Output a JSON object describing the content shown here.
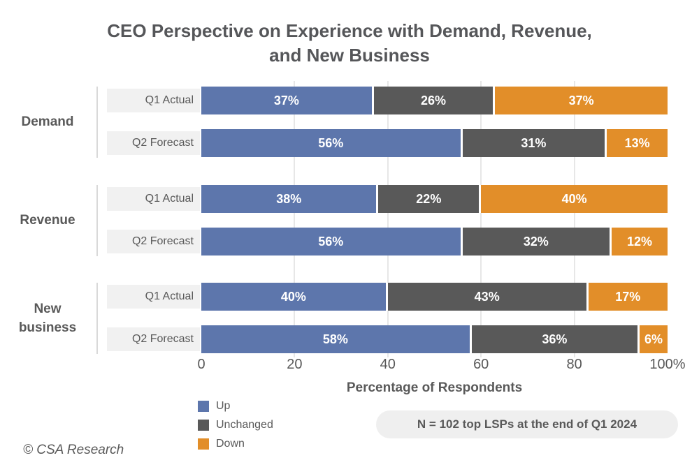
{
  "title": {
    "line1": "CEO Perspective on Experience with Demand, Revenue,",
    "line2": "and New Business"
  },
  "note": {
    "text": "N = 102 top LSPs at the end of Q1 2024"
  },
  "footer": {
    "copyright": "© CSA Research"
  },
  "chart_data": {
    "type": "bar",
    "stacked": true,
    "orientation": "horizontal",
    "title": "CEO Perspective on Experience with Demand, Revenue, and New Business",
    "xlabel": "Percentage of Respondents",
    "xlim": [
      0,
      100
    ],
    "xticks": [
      0,
      20,
      40,
      60,
      80,
      100
    ],
    "xtick_labels": [
      "0",
      "20",
      "40",
      "60",
      "80",
      "100%"
    ],
    "grid": true,
    "legend_position": "bottom-left",
    "value_label_suffix": "%",
    "series_names": [
      "Up",
      "Unchanged",
      "Down"
    ],
    "series_colors": [
      "#5d76ac",
      "#595959",
      "#e28e29"
    ],
    "groups": [
      {
        "label": "Demand",
        "rows": [
          {
            "label": "Q1 Actual",
            "values": [
              37,
              26,
              37
            ]
          },
          {
            "label": "Q2 Forecast",
            "values": [
              56,
              31,
              13
            ]
          }
        ]
      },
      {
        "label": "Revenue",
        "rows": [
          {
            "label": "Q1 Actual",
            "values": [
              38,
              22,
              40
            ]
          },
          {
            "label": "Q2 Forecast",
            "values": [
              56,
              32,
              12
            ]
          }
        ]
      },
      {
        "label": "New business",
        "rows": [
          {
            "label": "Q1 Actual",
            "values": [
              40,
              43,
              17
            ]
          },
          {
            "label": "Q2 Forecast",
            "values": [
              58,
              36,
              6
            ]
          }
        ]
      }
    ]
  }
}
